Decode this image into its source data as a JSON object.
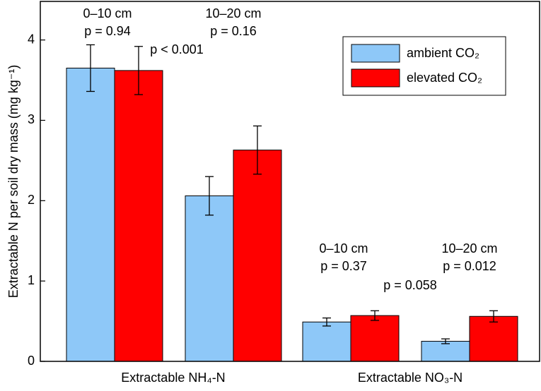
{
  "chart_data": {
    "type": "bar",
    "ylabel": "Extractable N per soil dry mass (mg kg⁻¹)",
    "groups": [
      "Extractable NH₄-N",
      "Extractable NO₃-N"
    ],
    "categories": [
      "0–10 cm",
      "10–20 cm",
      "0–10 cm",
      "10–20 cm"
    ],
    "pvalues": [
      "p = 0.94",
      "p = 0.16",
      "p = 0.37",
      "p = 0.012"
    ],
    "group_pvalues": [
      "p < 0.001",
      "p = 0.058"
    ],
    "series": [
      {
        "name": "ambient CO₂",
        "color": "#8ec8f8",
        "values": [
          3.65,
          2.06,
          0.49,
          0.25
        ],
        "errors": [
          0.29,
          0.24,
          0.05,
          0.03
        ]
      },
      {
        "name": "elevated CO₂",
        "color": "#ff0000",
        "values": [
          3.62,
          2.63,
          0.57,
          0.56
        ],
        "errors": [
          0.3,
          0.3,
          0.06,
          0.07
        ]
      }
    ],
    "ylim": [
      0,
      4.48
    ],
    "yticks": [
      0,
      1,
      2,
      3,
      4
    ],
    "grid": false,
    "legend": "upper right"
  }
}
